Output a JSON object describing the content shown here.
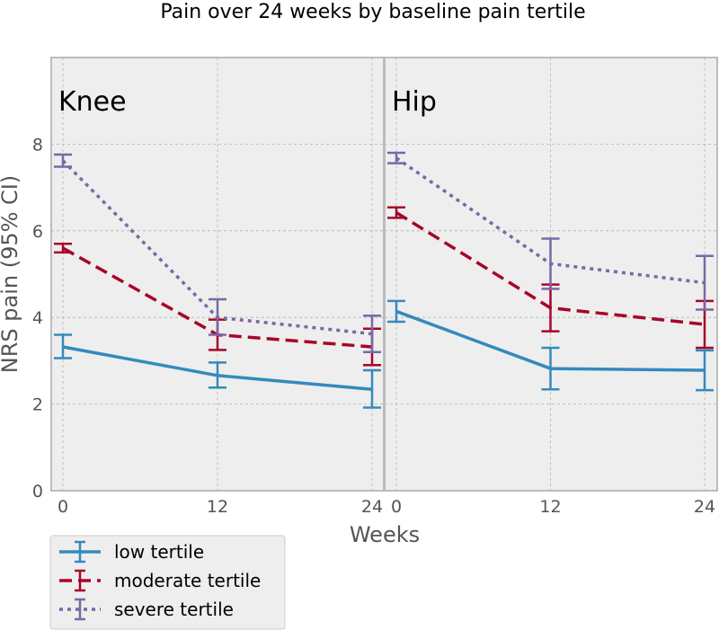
{
  "chart_data": {
    "type": "line",
    "title": "Pain over 24 weeks by baseline pain tertile",
    "xlabel": "Weeks",
    "ylabel": "NRS pain (95% CI)",
    "ylim": [
      0,
      10
    ],
    "yticks": [
      "0",
      "2",
      "4",
      "6",
      "8"
    ],
    "grid": true,
    "legend_position": "bottom-left",
    "panels": [
      {
        "name": "Knee",
        "x": [
          0,
          12,
          24
        ],
        "xticks": [
          "0",
          "12",
          "24"
        ],
        "series": [
          {
            "name": "low tertile",
            "values": [
              3.32,
              2.66,
              2.34
            ],
            "ci_low": [
              3.06,
              2.38,
              1.92
            ],
            "ci_high": [
              3.6,
              2.96,
              2.78
            ]
          },
          {
            "name": "moderate tertile",
            "values": [
              5.6,
              3.6,
              3.32
            ],
            "ci_low": [
              5.5,
              3.25,
              2.9
            ],
            "ci_high": [
              5.7,
              3.95,
              3.74
            ]
          },
          {
            "name": "severe tertile",
            "values": [
              7.62,
              4.0,
              3.62
            ],
            "ci_low": [
              7.48,
              3.6,
              3.2
            ],
            "ci_high": [
              7.76,
              4.42,
              4.04
            ]
          }
        ]
      },
      {
        "name": "Hip",
        "x": [
          0,
          12,
          24
        ],
        "xticks": [
          "0",
          "12",
          "24"
        ],
        "series": [
          {
            "name": "low tertile",
            "values": [
              4.14,
              2.82,
              2.78
            ],
            "ci_low": [
              3.9,
              2.34,
              2.32
            ],
            "ci_high": [
              4.38,
              3.3,
              3.24
            ]
          },
          {
            "name": "moderate tertile",
            "values": [
              6.42,
              4.22,
              3.84
            ],
            "ci_low": [
              6.3,
              3.68,
              3.3
            ],
            "ci_high": [
              6.54,
              4.76,
              4.38
            ]
          },
          {
            "name": "severe tertile",
            "values": [
              7.68,
              5.24,
              4.8
            ],
            "ci_low": [
              7.56,
              4.66,
              4.18
            ],
            "ci_high": [
              7.8,
              5.82,
              5.42
            ]
          }
        ]
      }
    ],
    "styles": {
      "low tertile": {
        "color": "#348abd",
        "dash": "solid"
      },
      "moderate tertile": {
        "color": "#a60628",
        "dash": "dashed"
      },
      "severe tertile": {
        "color": "#7a68a6",
        "dash": "dotted"
      }
    },
    "colors": {
      "panel_bg": "#eeeeee",
      "panel_border": "#bcbcbc",
      "grid": "#b2b2b2",
      "tick_text": "#555555"
    }
  }
}
